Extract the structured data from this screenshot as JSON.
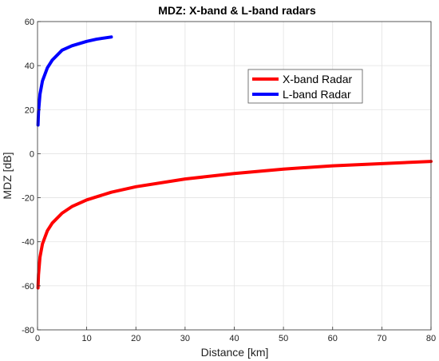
{
  "chart_data": {
    "type": "line",
    "title": "MDZ: X-band & L-band radars",
    "xlabel": "Distance [km]",
    "ylabel": "MDZ [dB]",
    "xlim": [
      0,
      80
    ],
    "ylim": [
      -80,
      60
    ],
    "xticks": [
      0,
      10,
      20,
      30,
      40,
      50,
      60,
      70,
      80
    ],
    "yticks": [
      -80,
      -60,
      -40,
      -20,
      0,
      20,
      40,
      60
    ],
    "grid": true,
    "legend_position": "upper-right-inset",
    "series": [
      {
        "name": "X-band Radar",
        "color": "#ff0000",
        "x": [
          0.1,
          0.2,
          0.5,
          1,
          2,
          3,
          5,
          7,
          10,
          15,
          20,
          30,
          40,
          50,
          60,
          70,
          80
        ],
        "y": [
          -61,
          -55,
          -47,
          -41,
          -35,
          -31.5,
          -27,
          -24,
          -21,
          -17.5,
          -15,
          -11.5,
          -9,
          -7,
          -5.5,
          -4.5,
          -3.5
        ]
      },
      {
        "name": "L-band Radar",
        "color": "#0000ff",
        "x": [
          0.1,
          0.2,
          0.5,
          1,
          2,
          3,
          5,
          7,
          10,
          12,
          15
        ],
        "y": [
          13,
          19,
          27,
          33,
          39,
          42.5,
          47,
          49,
          51,
          52,
          53
        ]
      }
    ]
  }
}
